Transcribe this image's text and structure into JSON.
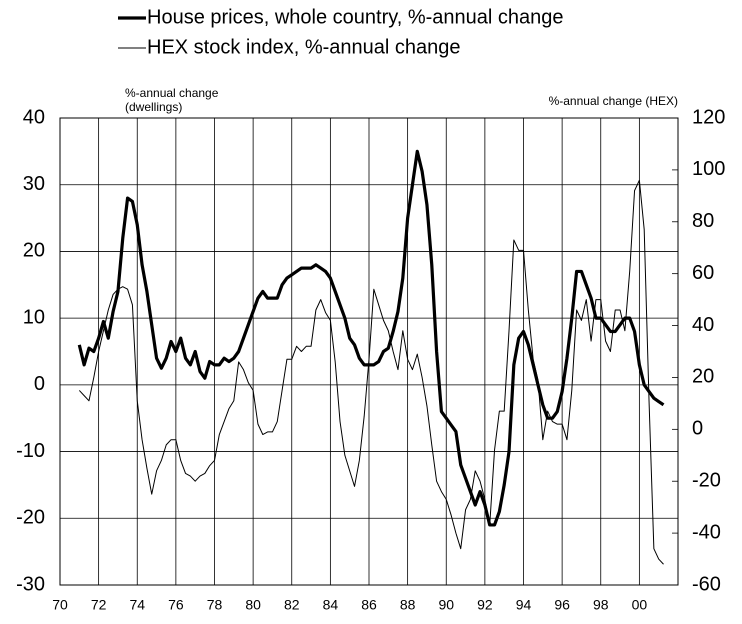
{
  "chart_data": {
    "type": "line",
    "legend": "top",
    "grid": true,
    "ylabel": [
      "%-annual change",
      "(dwellings)"
    ],
    "y2label": "%-annual change (HEX)",
    "xlim": [
      1970,
      2002
    ],
    "xticks": [
      {
        "value": 1970,
        "label": "70"
      },
      {
        "value": 1972,
        "label": "72"
      },
      {
        "value": 1974,
        "label": "74"
      },
      {
        "value": 1976,
        "label": "76"
      },
      {
        "value": 1978,
        "label": "78"
      },
      {
        "value": 1980,
        "label": "80"
      },
      {
        "value": 1982,
        "label": "82"
      },
      {
        "value": 1984,
        "label": "84"
      },
      {
        "value": 1986,
        "label": "86"
      },
      {
        "value": 1988,
        "label": "88"
      },
      {
        "value": 1990,
        "label": "90"
      },
      {
        "value": 1992,
        "label": "92"
      },
      {
        "value": 1994,
        "label": "94"
      },
      {
        "value": 1996,
        "label": "96"
      },
      {
        "value": 1998,
        "label": "98"
      },
      {
        "value": 2000,
        "label": "00"
      }
    ],
    "ylim": [
      -30,
      40
    ],
    "yticks": [
      -30,
      -20,
      -10,
      0,
      10,
      20,
      30,
      40
    ],
    "y2lim": [
      -60,
      120
    ],
    "y2ticks": [
      -60,
      -40,
      -20,
      0,
      20,
      40,
      60,
      80,
      100,
      120
    ],
    "x": [
      1971,
      1971.25,
      1971.5,
      1971.75,
      1972,
      1972.25,
      1972.5,
      1972.75,
      1973,
      1973.25,
      1973.5,
      1973.75,
      1974,
      1974.25,
      1974.5,
      1974.75,
      1975,
      1975.25,
      1975.5,
      1975.75,
      1976,
      1976.25,
      1976.5,
      1976.75,
      1977,
      1977.25,
      1977.5,
      1977.75,
      1978,
      1978.25,
      1978.5,
      1978.75,
      1979,
      1979.25,
      1979.5,
      1979.75,
      1980,
      1980.25,
      1980.5,
      1980.75,
      1981,
      1981.25,
      1981.5,
      1981.75,
      1982,
      1982.25,
      1982.5,
      1982.75,
      1983,
      1983.25,
      1983.5,
      1983.75,
      1984,
      1984.25,
      1984.5,
      1984.75,
      1985,
      1985.25,
      1985.5,
      1985.75,
      1986,
      1986.25,
      1986.5,
      1986.75,
      1987,
      1987.25,
      1987.5,
      1987.75,
      1988,
      1988.25,
      1988.5,
      1988.75,
      1989,
      1989.25,
      1989.5,
      1989.75,
      1990,
      1990.25,
      1990.5,
      1990.75,
      1991,
      1991.25,
      1991.5,
      1991.75,
      1992,
      1992.25,
      1992.5,
      1992.75,
      1993,
      1993.25,
      1993.5,
      1993.75,
      1994,
      1994.25,
      1994.5,
      1994.75,
      1995,
      1995.25,
      1995.5,
      1995.75,
      1996,
      1996.25,
      1996.5,
      1996.75,
      1997,
      1997.25,
      1997.5,
      1997.75,
      1998,
      1998.25,
      1998.5,
      1998.75,
      1999,
      1999.25,
      1999.5,
      1999.75,
      2000,
      2000.25,
      2000.5,
      2000.75,
      2001,
      2001.25
    ],
    "series": [
      {
        "name": "House prices, whole country, %-annual change",
        "color": "#000000",
        "values": [
          6,
          3,
          5.5,
          5,
          7,
          9.5,
          7,
          11,
          14,
          22,
          28,
          27.5,
          24,
          18,
          14,
          9,
          4,
          2.5,
          4,
          6.5,
          5,
          7,
          4,
          3,
          5,
          2,
          1,
          3.5,
          3,
          3,
          4,
          3.5,
          4,
          5,
          7,
          9,
          11,
          13,
          14,
          13,
          13,
          13,
          15,
          16,
          16.5,
          17,
          17.5,
          17.5,
          17.5,
          18,
          17.5,
          17,
          16,
          14,
          12,
          10,
          7,
          6,
          4,
          3,
          3,
          3,
          3.5,
          5,
          5.5,
          8,
          11,
          16,
          25,
          30,
          35,
          32,
          27,
          18,
          5,
          -4,
          -5,
          -6,
          -7,
          -12,
          -14,
          -16,
          -18,
          -16,
          -18,
          -21,
          -21,
          -19,
          -15,
          -10,
          3,
          7,
          8,
          6,
          3,
          0,
          -3,
          -5,
          -5,
          -4,
          -1,
          4,
          10,
          17,
          17,
          15,
          13,
          10,
          10,
          9,
          8,
          8,
          9,
          10,
          10,
          8,
          3,
          0,
          -1,
          -2,
          -2.5,
          -3
        ]
      },
      {
        "name": "HEX stock index, %-annual change",
        "color": "#000000",
        "axis": "y2",
        "values": [
          15,
          13,
          11,
          20,
          30,
          38,
          46,
          52,
          54,
          55,
          54,
          48,
          11,
          -4,
          -15,
          -25,
          -16,
          -12,
          -6,
          -4,
          -4,
          -12,
          -17,
          -18,
          -20,
          -18,
          -17,
          -14,
          -12,
          -2,
          3,
          8,
          11,
          26,
          23,
          18,
          15,
          2,
          -2,
          -1,
          -1,
          3,
          15,
          27,
          27,
          32,
          30,
          32,
          32,
          46,
          50,
          45,
          42,
          26,
          3,
          -10,
          -16,
          -22,
          -12,
          5,
          27,
          54,
          48,
          42,
          38,
          30,
          23,
          38,
          27,
          23,
          29,
          20,
          9,
          -6,
          -20,
          -24,
          -27,
          -33,
          -40,
          -46,
          -31,
          -27,
          -16,
          -20,
          -27,
          -37,
          -8,
          7,
          7,
          38,
          73,
          69,
          69,
          46,
          27,
          19,
          -4,
          7,
          3,
          2,
          2,
          -4,
          15,
          46,
          42,
          50,
          34,
          50,
          50,
          34,
          30,
          46,
          46,
          38,
          61,
          92,
          96,
          77,
          11,
          -46,
          -50,
          -52
        ]
      }
    ]
  }
}
